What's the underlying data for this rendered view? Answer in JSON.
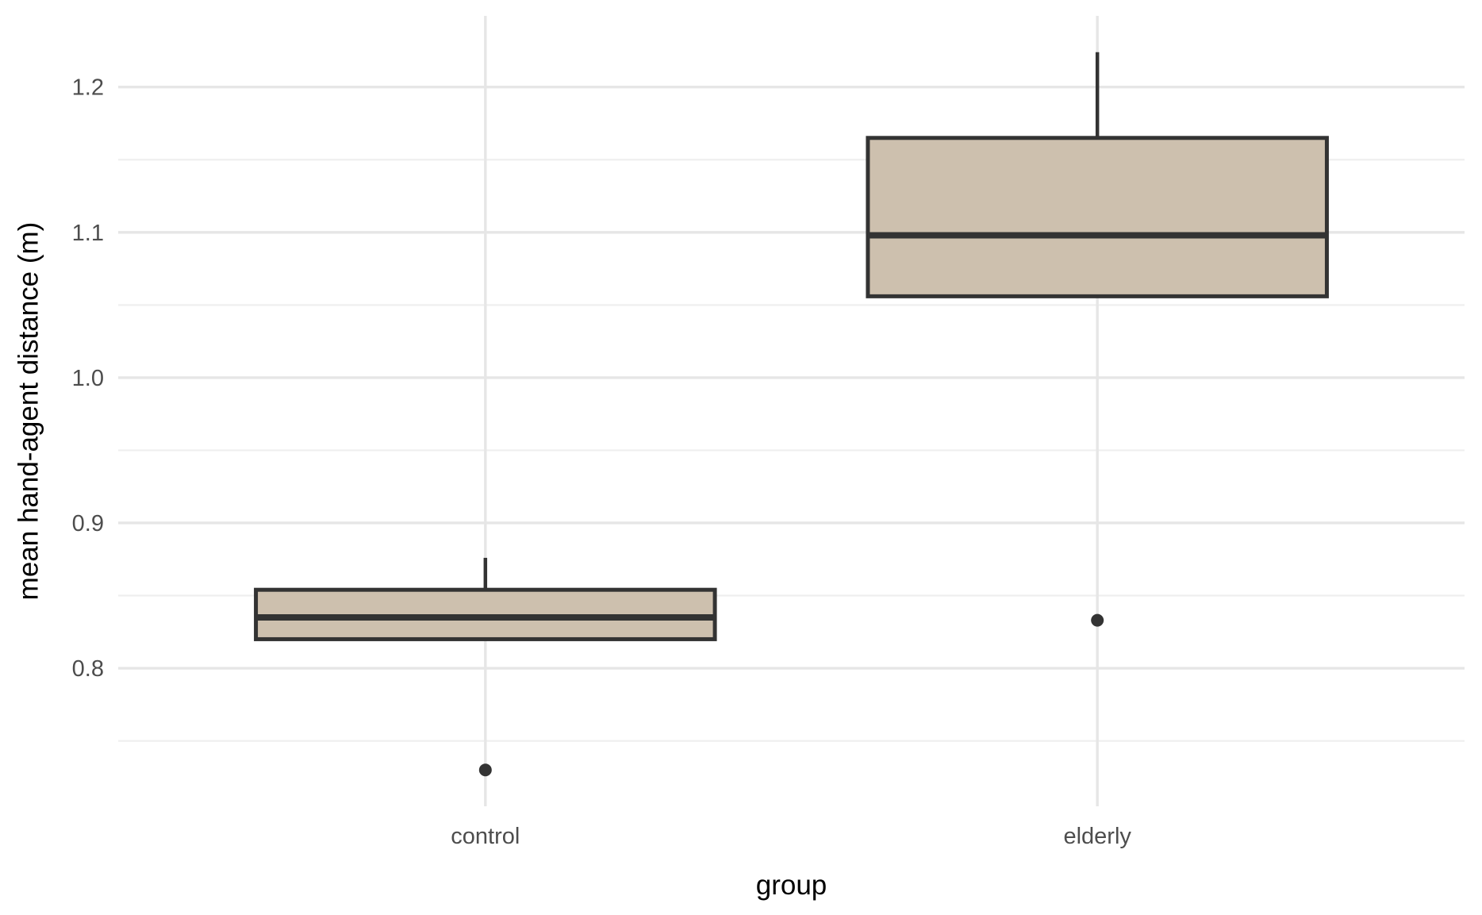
{
  "figure": {
    "background": "#FFFFFF"
  },
  "chart_data": {
    "type": "boxplot",
    "title": "",
    "xlabel": "group",
    "ylabel": "mean hand-agent distance (m)",
    "categories": [
      "control",
      "elderly"
    ],
    "y_ticks": [
      0.8,
      0.9,
      1.0,
      1.1,
      1.2
    ],
    "y_tick_labels": [
      "0.8",
      "0.9",
      "1.0",
      "1.1",
      "1.2"
    ],
    "y_minor_ticks": [
      0.75,
      0.85,
      0.95,
      1.05,
      1.15
    ],
    "ylim": [
      0.705,
      1.249
    ],
    "grid": "horizontal major+minor, vertical major at categories",
    "legend": "none",
    "series": [
      {
        "name": "control",
        "q1": 0.82,
        "median": 0.835,
        "q3": 0.854,
        "whisker_low": 0.82,
        "whisker_high": 0.876,
        "outliers": [
          0.73
        ]
      },
      {
        "name": "elderly",
        "q1": 1.056,
        "median": 1.098,
        "q3": 1.165,
        "whisker_low": 1.056,
        "whisker_high": 1.224,
        "outliers": [
          0.833
        ]
      }
    ],
    "colors": {
      "background": "#FFFFFF",
      "box_fill": "#CDC0AE",
      "box_stroke": "#333333",
      "median_stroke": "#333333",
      "whisker_stroke": "#333333",
      "outlier_fill": "#333333",
      "grid_major": "#E6E6E6",
      "grid_minor": "#EFEFEF",
      "tick_text": "#4D4D4D",
      "axis_title_text": "#000000"
    }
  }
}
